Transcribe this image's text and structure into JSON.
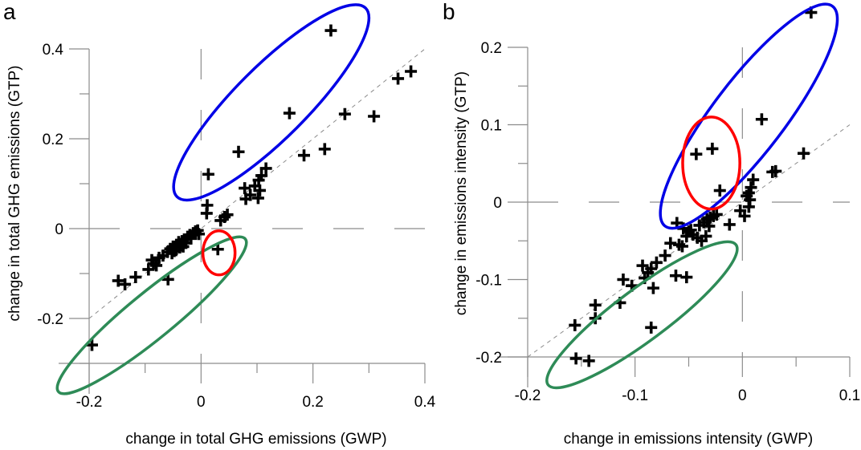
{
  "chart_data": [
    {
      "type": "scatter",
      "panel_label": "a",
      "title": "",
      "xlabel": "change in total GHG emissions (GWP)",
      "ylabel": "change in total GHG emissions (GTP)",
      "xlim": [
        -0.2,
        0.4
      ],
      "ylim": [
        -0.3,
        0.4
      ],
      "xticks": [
        -0.2,
        0,
        0.2,
        0.4
      ],
      "xtick_labels": [
        "-0.2",
        "0",
        "0.2",
        "0.4"
      ],
      "xminor": [
        -0.1,
        0.1,
        0.3
      ],
      "yticks": [
        -0.2,
        0,
        0.2,
        0.4
      ],
      "ytick_labels": [
        "-0.2",
        "0",
        "0.2",
        "0.4"
      ],
      "yminor": [
        -0.3,
        -0.1,
        0.1,
        0.3
      ],
      "reference_line": "y = x (dashed)",
      "zero_lines": true,
      "marker": "plus",
      "points": [
        [
          0.232,
          0.441
        ],
        [
          0.158,
          0.257
        ],
        [
          0.067,
          0.171
        ],
        [
          0.013,
          0.121
        ],
        [
          0.257,
          0.255
        ],
        [
          0.309,
          0.25
        ],
        [
          0.184,
          0.163
        ],
        [
          0.221,
          0.177
        ],
        [
          0.352,
          0.334
        ],
        [
          0.375,
          0.35
        ],
        [
          0.116,
          0.134
        ],
        [
          0.108,
          0.118
        ],
        [
          0.103,
          0.108
        ],
        [
          0.078,
          0.09
        ],
        [
          0.105,
          0.085
        ],
        [
          0.08,
          0.066
        ],
        [
          0.102,
          0.068
        ],
        [
          0.096,
          0.095
        ],
        [
          0.088,
          0.075
        ],
        [
          0.011,
          0.052
        ],
        [
          0.01,
          0.034
        ],
        [
          0.047,
          0.031
        ],
        [
          0.035,
          0.018
        ],
        [
          0.042,
          0.026
        ],
        [
          0.03,
          -0.046
        ],
        [
          -0.195,
          -0.259
        ],
        [
          -0.059,
          -0.113
        ],
        [
          -0.148,
          -0.116
        ],
        [
          -0.136,
          -0.124
        ],
        [
          -0.117,
          -0.108
        ],
        [
          -0.094,
          -0.091
        ],
        [
          -0.088,
          -0.07
        ],
        [
          -0.08,
          -0.082
        ],
        [
          -0.075,
          -0.065
        ],
        [
          -0.085,
          -0.078
        ],
        [
          -0.068,
          -0.06
        ],
        [
          -0.06,
          -0.052
        ],
        [
          -0.055,
          -0.045
        ],
        [
          -0.05,
          -0.04
        ],
        [
          -0.048,
          -0.05
        ],
        [
          -0.044,
          -0.036
        ],
        [
          -0.04,
          -0.03
        ],
        [
          -0.038,
          -0.042
        ],
        [
          -0.034,
          -0.028
        ],
        [
          -0.03,
          -0.024
        ],
        [
          -0.027,
          -0.032
        ],
        [
          -0.024,
          -0.018
        ],
        [
          -0.02,
          -0.014
        ],
        [
          -0.018,
          -0.022
        ],
        [
          -0.014,
          -0.01
        ],
        [
          -0.01,
          -0.006
        ],
        [
          -0.006,
          -0.004
        ],
        [
          -0.004,
          -0.012
        ],
        [
          -0.032,
          -0.04
        ],
        [
          -0.045,
          -0.048
        ],
        [
          -0.052,
          -0.055
        ]
      ],
      "ellipses": [
        {
          "name": "blue-ellipse",
          "color": "#0000e6",
          "p1": [
            0.294,
            0.491
          ],
          "p2": [
            -0.043,
            0.071
          ],
          "width_ratio": 0.27
        },
        {
          "name": "green-ellipse",
          "color": "#2e8b57",
          "p1": [
            0.079,
            -0.023
          ],
          "p2": [
            -0.255,
            -0.363
          ],
          "width_ratio": 0.19
        },
        {
          "name": "red-ellipse",
          "color": "#ff0000",
          "p1": [
            0.032,
            -0.005
          ],
          "p2": [
            0.032,
            -0.103
          ],
          "width_ratio": 0.73
        }
      ]
    },
    {
      "type": "scatter",
      "panel_label": "b",
      "title": "",
      "xlabel": "change in emissions intensity (GWP)",
      "ylabel": "change in emissions intensity (GTP)",
      "xlim": [
        -0.2,
        0.1
      ],
      "ylim": [
        -0.2,
        0.2
      ],
      "xticks": [
        -0.2,
        -0.1,
        0,
        0.1
      ],
      "xtick_labels": [
        "-0.2",
        "-0.1",
        "0",
        "0.1"
      ],
      "xminor": [
        -0.15,
        -0.05,
        0.05
      ],
      "yticks": [
        -0.2,
        -0.1,
        0,
        0.1,
        0.2
      ],
      "ytick_labels": [
        "-0.2",
        "-0.1",
        "0",
        "0.1",
        "0.2"
      ],
      "yminor": [
        -0.15,
        -0.05,
        0.05,
        0.15
      ],
      "reference_line": "y = x (dashed)",
      "zero_lines": true,
      "marker": "plus",
      "points": [
        [
          0.064,
          0.245
        ],
        [
          0.018,
          0.107
        ],
        [
          0.057,
          0.063
        ],
        [
          0.028,
          0.039
        ],
        [
          0.031,
          0.04
        ],
        [
          -0.028,
          0.069
        ],
        [
          -0.043,
          0.062
        ],
        [
          -0.021,
          0.015
        ],
        [
          0.01,
          0.029
        ],
        [
          0.008,
          0.019
        ],
        [
          0.006,
          0.012
        ],
        [
          0.004,
          0.008
        ],
        [
          0.007,
          0.003
        ],
        [
          0.006,
          -0.006
        ],
        [
          -0.002,
          -0.011
        ],
        [
          0.002,
          -0.018
        ],
        [
          -0.012,
          -0.029
        ],
        [
          -0.061,
          -0.027
        ],
        [
          -0.055,
          -0.034
        ],
        [
          -0.05,
          -0.038
        ],
        [
          -0.046,
          -0.042
        ],
        [
          -0.04,
          -0.03
        ],
        [
          -0.036,
          -0.026
        ],
        [
          -0.033,
          -0.022
        ],
        [
          -0.03,
          -0.02
        ],
        [
          -0.027,
          -0.018
        ],
        [
          -0.024,
          -0.016
        ],
        [
          -0.042,
          -0.046
        ],
        [
          -0.038,
          -0.05
        ],
        [
          -0.034,
          -0.044
        ],
        [
          -0.052,
          -0.044
        ],
        [
          -0.048,
          -0.036
        ],
        [
          -0.031,
          -0.031
        ],
        [
          -0.067,
          -0.053
        ],
        [
          -0.059,
          -0.055
        ],
        [
          -0.056,
          -0.057
        ],
        [
          -0.072,
          -0.069
        ],
        [
          -0.08,
          -0.078
        ],
        [
          -0.093,
          -0.082
        ],
        [
          -0.085,
          -0.086
        ],
        [
          -0.088,
          -0.091
        ],
        [
          -0.091,
          -0.098
        ],
        [
          -0.083,
          -0.111
        ],
        [
          -0.062,
          -0.095
        ],
        [
          -0.052,
          -0.097
        ],
        [
          -0.111,
          -0.1
        ],
        [
          -0.103,
          -0.108
        ],
        [
          -0.114,
          -0.13
        ],
        [
          -0.137,
          -0.133
        ],
        [
          -0.137,
          -0.15
        ],
        [
          -0.156,
          -0.159
        ],
        [
          -0.085,
          -0.162
        ],
        [
          -0.155,
          -0.202
        ],
        [
          -0.143,
          -0.205
        ]
      ],
      "ellipses": [
        {
          "name": "blue-ellipse",
          "color": "#0000e6",
          "p1": [
            0.084,
            0.253
          ],
          "p2": [
            -0.072,
            -0.031
          ],
          "width_ratio": 0.26
        },
        {
          "name": "green-ellipse",
          "color": "#2e8b57",
          "p1": [
            -0.006,
            -0.055
          ],
          "p2": [
            -0.181,
            -0.236
          ],
          "width_ratio": 0.22
        },
        {
          "name": "red-ellipse",
          "color": "#ff0000",
          "p1": [
            -0.029,
            0.11
          ],
          "p2": [
            -0.029,
            -0.009
          ],
          "width_ratio": 0.62
        }
      ]
    }
  ]
}
